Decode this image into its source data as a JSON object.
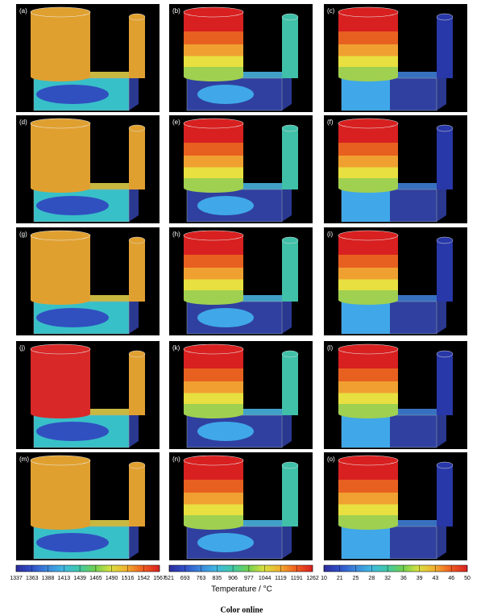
{
  "panels": [
    {
      "label": "(a)"
    },
    {
      "label": "(b)"
    },
    {
      "label": "(c)"
    },
    {
      "label": "(d)"
    },
    {
      "label": "(e)"
    },
    {
      "label": "(f)"
    },
    {
      "label": "(g)"
    },
    {
      "label": "(h)"
    },
    {
      "label": "(i)"
    },
    {
      "label": "(j)"
    },
    {
      "label": "(k)"
    },
    {
      "label": "(l)"
    },
    {
      "label": "(m)"
    },
    {
      "label": "(n)"
    },
    {
      "label": "(o)"
    }
  ],
  "colorbars": [
    {
      "ticks": [
        1337,
        1363,
        1388,
        1413,
        1439,
        1465,
        1490,
        1516,
        1542,
        1567
      ]
    },
    {
      "ticks": [
        621,
        693,
        763,
        835,
        906,
        977,
        1044,
        1119,
        1191,
        1262
      ]
    },
    {
      "ticks": [
        10,
        21,
        25,
        28,
        32,
        36,
        39,
        43,
        46,
        50
      ]
    }
  ],
  "axis_label": "Temperature / °C",
  "caption": "Color online"
}
